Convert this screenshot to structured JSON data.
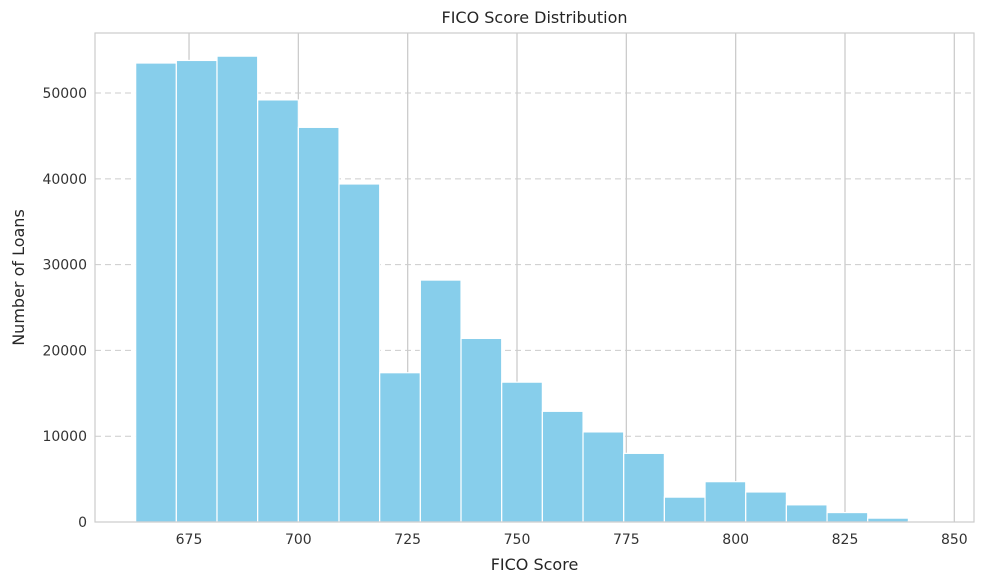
{
  "chart_data": {
    "type": "bar",
    "title": "FICO Score Distribution",
    "xlabel": "FICO Score",
    "ylabel": "Number of Loans",
    "xlim": [
      653.5,
      854.5
    ],
    "ylim": [
      0,
      57000
    ],
    "bin_edges": [
      662.8,
      672.1,
      681.4,
      690.7,
      700.0,
      709.3,
      718.6,
      727.9,
      737.2,
      746.5,
      755.8,
      765.1,
      774.4,
      783.7,
      793.0,
      802.3,
      811.6,
      820.9,
      830.2,
      839.5,
      848.8
    ],
    "counts": [
      53500,
      53800,
      54300,
      49200,
      46000,
      39400,
      17400,
      28200,
      21400,
      16300,
      12900,
      10500,
      8000,
      2900,
      4700,
      3500,
      2000,
      1100,
      450,
      80
    ],
    "x_ticks": [
      675,
      700,
      725,
      750,
      775,
      800,
      825,
      850
    ],
    "y_ticks": [
      0,
      10000,
      20000,
      30000,
      40000,
      50000
    ],
    "grid": {
      "x": "solid",
      "y": "dashed"
    },
    "colors": {
      "bar": "#87ceeb",
      "bar_edge": "#ffffff",
      "grid": "#cccccc",
      "spine": "#cccccc"
    }
  }
}
